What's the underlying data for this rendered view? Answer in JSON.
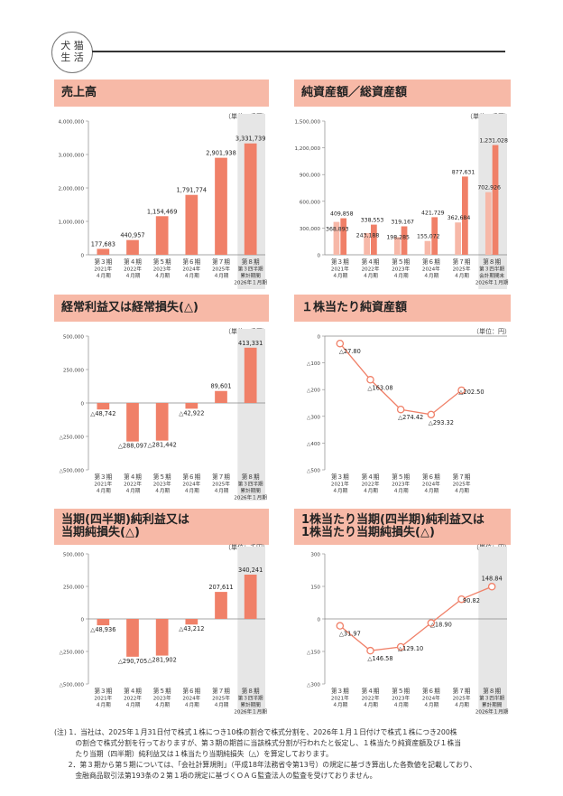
{
  "header": {
    "logo_line1": "犬 猫",
    "logo_line2": "生 活"
  },
  "colors": {
    "bar": "#f08068",
    "bar_light": "#f7b8a8",
    "shade": "#e6e6e6",
    "line": "#f08068",
    "title_bg": "#f7b9a7"
  },
  "chart_data": [
    {
      "id": "sales",
      "type": "bar",
      "title": "売上高",
      "unit": "（単位：千円）",
      "categories": [
        "第３期|2021年|４月期",
        "第４期|2022年|４月期",
        "第５期|2023年|４月期",
        "第６期|2024年|４月期",
        "第７期|2025年|４月期",
        "第８期|第３四半期|累計期間|2026年１月期"
      ],
      "ylim": [
        0,
        4000000
      ],
      "yticks": [
        0,
        1000000,
        2000000,
        3000000,
        4000000
      ],
      "ytick_labels": [
        "0",
        "1,000,000",
        "2,000,000",
        "3,000,000",
        "4,000,000"
      ],
      "values": [
        177683,
        440957,
        1154469,
        1791774,
        2901938,
        3331739
      ],
      "labels": [
        "177,683",
        "440,957",
        "1,154,469",
        "1,791,774",
        "2,901,938",
        "3,331,739"
      ],
      "shade_last": true
    },
    {
      "id": "assets",
      "type": "bar",
      "title": "純資産額／総資産額",
      "unit": "（単位：千円）",
      "categories": [
        "第３期|2021年|４月期",
        "第４期|2022年|４月期",
        "第５期|2023年|４月期",
        "第６期|2024年|４月期",
        "第７期|2025年|４月期",
        "第８期|第３四半期|会計期間末|2026年１月期"
      ],
      "ylim": [
        0,
        1500000
      ],
      "yticks": [
        0,
        300000,
        600000,
        900000,
        1200000,
        1500000
      ],
      "ytick_labels": [
        "0",
        "300,000",
        "600,000",
        "900,000",
        "1,200,000",
        "1,500,000"
      ],
      "series": [
        {
          "values": [
            368893,
            243188,
            198285,
            155072,
            362684,
            702926
          ],
          "labels": [
            "368,893",
            "243,188",
            "198,285",
            "155,072",
            "362,684",
            "702,926"
          ]
        },
        {
          "values": [
            409858,
            338553,
            319167,
            421729,
            877631,
            1231028
          ],
          "labels": [
            "409,858",
            "338,553",
            "319,167",
            "421,729",
            "877,631",
            "1,231,028"
          ]
        }
      ],
      "shade_last": true
    },
    {
      "id": "ordinary",
      "type": "bar",
      "title": "経常利益又は経常損失(△)",
      "unit": "（単位：千円）",
      "categories": [
        "第３期|2021年|４月期",
        "第４期|2022年|４月期",
        "第５期|2023年|４月期",
        "第６期|2024年|４月期",
        "第７期|2025年|４月期",
        "第８期|第３四半期|累計期間|2026年１月期"
      ],
      "ylim": [
        -500000,
        500000
      ],
      "yticks": [
        -500000,
        -250000,
        0,
        250000,
        500000
      ],
      "ytick_labels": [
        "△500,000",
        "△250,000",
        "0",
        "250,000",
        "500,000"
      ],
      "values": [
        -48742,
        -288097,
        -281442,
        -42922,
        89601,
        413331
      ],
      "labels": [
        "△48,742",
        "△288,097",
        "△281,442",
        "△42,922",
        "89,601",
        "413,331"
      ],
      "shade_last": true
    },
    {
      "id": "bps",
      "type": "line",
      "title": "１株当たり純資産額",
      "unit": "（単位：円）",
      "categories": [
        "第３期|2021年|４月期",
        "第４期|2022年|４月期",
        "第５期|2023年|４月期",
        "第６期|2024年|４月期",
        "第７期|2025年|４月期"
      ],
      "ylim": [
        -500,
        0
      ],
      "yticks": [
        -500,
        -400,
        -300,
        -200,
        -100,
        0
      ],
      "ytick_labels": [
        "△500",
        "△400",
        "△300",
        "△200",
        "△100",
        "0"
      ],
      "values": [
        -27.8,
        -163.08,
        -274.42,
        -293.32,
        -202.5
      ],
      "labels": [
        "△27.80",
        "△163.08",
        "△274.42",
        "△293.32",
        "△202.50"
      ],
      "shade_last": false
    },
    {
      "id": "netincome",
      "type": "bar",
      "title": "当期(四半期)純利益又は|当期純損失(△)",
      "unit": "（単位：千円）",
      "categories": [
        "第３期|2021年|４月期",
        "第４期|2022年|４月期",
        "第５期|2023年|４月期",
        "第６期|2024年|４月期",
        "第７期|2025年|４月期",
        "第８期|第３四半期|累計期間|2026年１月期"
      ],
      "ylim": [
        -500000,
        500000
      ],
      "yticks": [
        -500000,
        -250000,
        0,
        250000,
        500000
      ],
      "ytick_labels": [
        "△500,000",
        "△250,000",
        "0",
        "250,000",
        "500,000"
      ],
      "values": [
        -48936,
        -290705,
        -281902,
        -43212,
        207611,
        340241
      ],
      "labels": [
        "△48,936",
        "△290,705",
        "△281,902",
        "△43,212",
        "207,611",
        "340,241"
      ],
      "shade_last": true
    },
    {
      "id": "eps",
      "type": "line",
      "title": "1株当たり当期(四半期)純利益又は|1株当たり当期純損失(△)",
      "unit": "（単位：円）",
      "categories": [
        "第３期|2021年|４月期",
        "第４期|2022年|４月期",
        "第５期|2023年|４月期",
        "第６期|2024年|４月期",
        "第７期|2025年|４月期",
        "第８期|第３四半期|累計期間|2026年１月期"
      ],
      "ylim": [
        -300,
        300
      ],
      "yticks": [
        -300,
        -150,
        0,
        150,
        300
      ],
      "ytick_labels": [
        "△300",
        "△150",
        "0",
        "150",
        "300"
      ],
      "values": [
        -31.97,
        -146.58,
        -129.1,
        -18.9,
        90.82,
        148.84
      ],
      "labels": [
        "△31.97",
        "△146.58",
        "△129.10",
        "△18.90",
        "90.82",
        "148.84"
      ],
      "shade_last": true
    }
  ],
  "notes": [
    "(注) 1．当社は、2025年１月31日付で株式１株につき10株の割合で株式分割を、2026年１月１日付けで株式１株につき200株",
    "　　　の割合で株式分割を行っておりますが、第３期の期首に当該株式分割が行われたと仮定し、１株当たり純資産額及び１株当",
    "　　　たり当期（四半期）純利益又は１株当たり当期純損失（△）を算定しております。",
    "　　2．第３期から第５期については、｢会社計算規則｣（平成18年法務省令第13号）の規定に基づき算出した各数値を記載しており、",
    "　　　金融商品取引法第193条の２第１項の規定に基づくＯＡＧ監査法人の監査を受けておりません。"
  ]
}
